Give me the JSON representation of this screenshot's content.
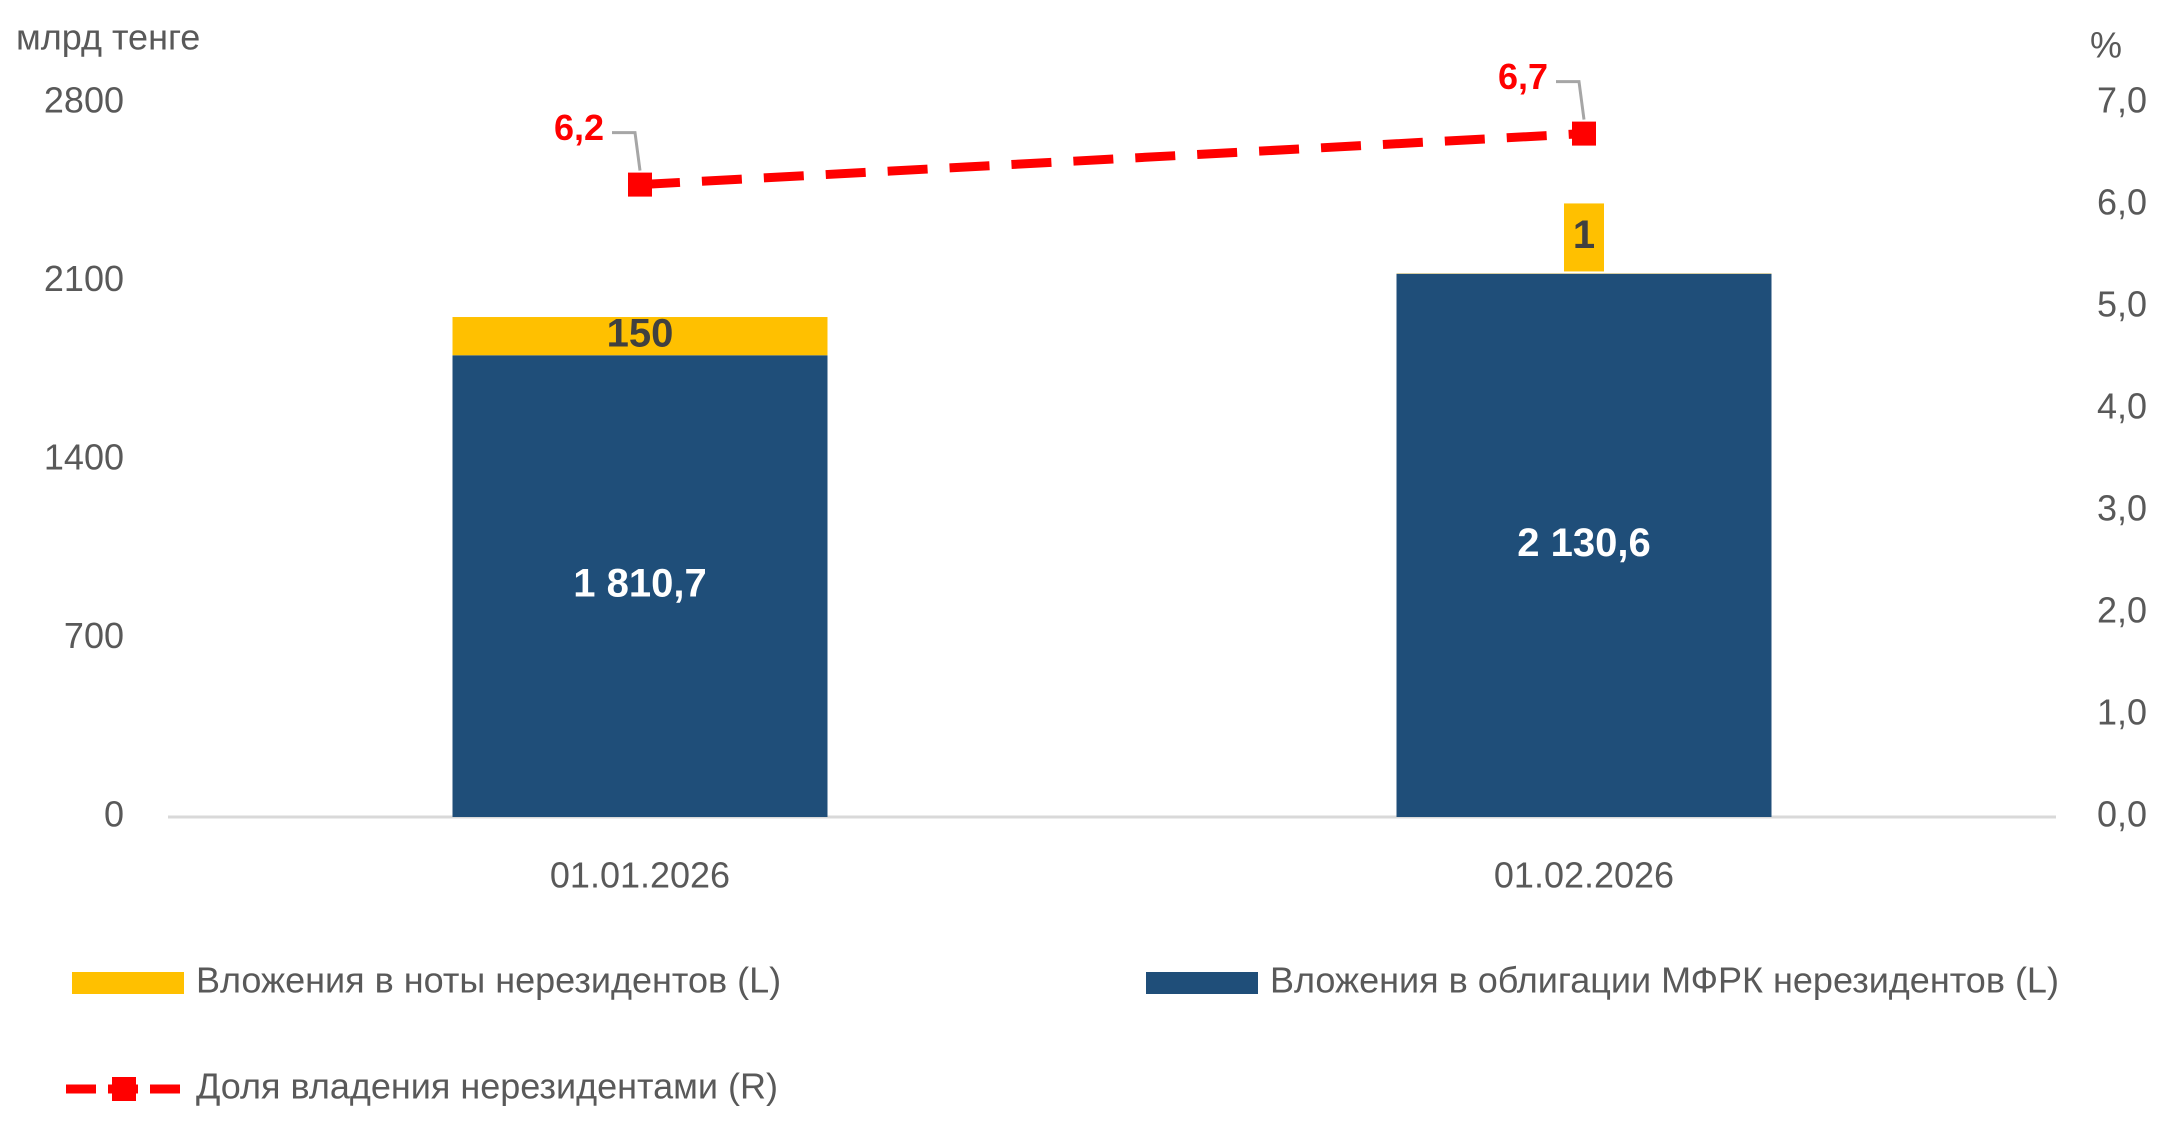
{
  "chart_data": {
    "type": "bar",
    "stacked": true,
    "y_label": "млрд тенге",
    "y2_label": "%",
    "categories": [
      "01.01.2026",
      "01.02.2026"
    ],
    "series": [
      {
        "name": "Вложения в облигации МФРК нерезидентов (L)",
        "type": "bar",
        "color": "#1f4e79",
        "values": [
          1810.7,
          2130.6
        ],
        "value_labels": [
          "1 810,7",
          "2 130,6"
        ]
      },
      {
        "name": "Вложения в ноты нерезидентов (L)",
        "type": "bar",
        "color": "#ffc000",
        "values": [
          150,
          1
        ]
      },
      {
        "name": "Доля владения нерезидентами (R)",
        "type": "line",
        "axis": "y2",
        "color": "#ff0000",
        "dashed": true,
        "values": [
          6.2,
          6.7
        ],
        "value_labels": [
          "6,2",
          "6,7"
        ]
      }
    ],
    "ylim": [
      0,
      2800
    ],
    "yticks": [
      0,
      700,
      1400,
      2100,
      2800
    ],
    "y2lim": [
      0,
      7
    ],
    "y2ticks": [
      {
        "value": 0,
        "label": "0,0"
      },
      {
        "value": 1,
        "label": "1,0"
      },
      {
        "value": 2,
        "label": "2,0"
      },
      {
        "value": 3,
        "label": "3,0"
      },
      {
        "value": 4,
        "label": "4,0"
      },
      {
        "value": 5,
        "label": "5,0"
      },
      {
        "value": 6,
        "label": "6,0"
      },
      {
        "value": 7,
        "label": "7,0"
      }
    ],
    "grid": false
  }
}
